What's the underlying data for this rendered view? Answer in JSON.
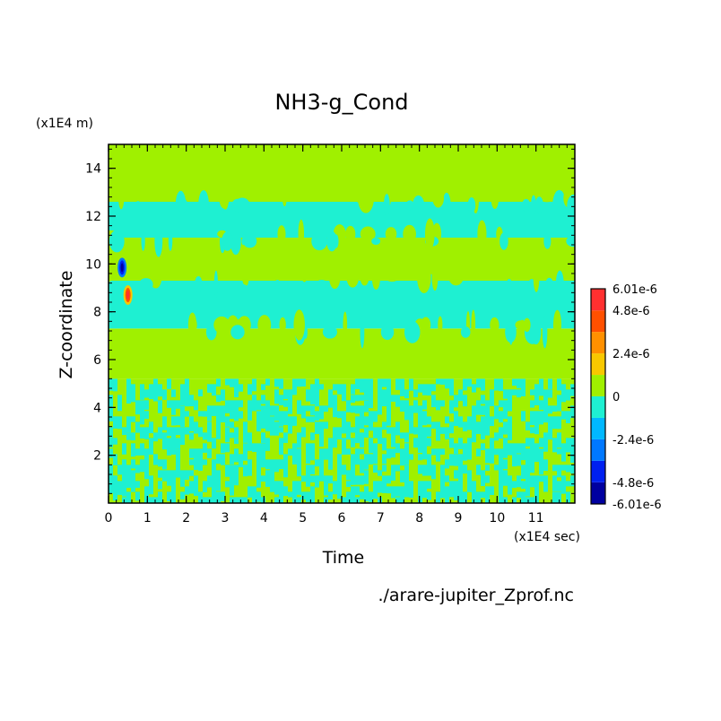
{
  "chart_data": {
    "type": "heatmap",
    "title": "NH3-g_Cond",
    "xlabel": "Time",
    "ylabel": "Z-coordinate",
    "x_unit": "(x1E4 sec)",
    "y_unit": "(x1E4 m)",
    "file_label": "./arare-jupiter_Zprof.nc",
    "xlim": [
      0,
      12
    ],
    "ylim": [
      0,
      15
    ],
    "x_ticks": [
      "0",
      "1",
      "2",
      "3",
      "4",
      "5",
      "6",
      "7",
      "8",
      "9",
      "10",
      "11"
    ],
    "y_ticks": [
      "2",
      "4",
      "6",
      "8",
      "10",
      "12",
      "14"
    ],
    "colorbar": {
      "levels": [
        -6.01e-06,
        -4.8e-06,
        -3.6e-06,
        -2.4e-06,
        -1.2e-06,
        0,
        1.2e-06,
        2.4e-06,
        3.6e-06,
        4.8e-06,
        6.01e-06
      ],
      "colors": [
        "#0000a0",
        "#0020f0",
        "#0078ff",
        "#00b8ff",
        "#1ef0d2",
        "#a0f000",
        "#f8c800",
        "#ff9000",
        "#ff5000",
        "#ff3030"
      ],
      "tick_labels": [
        "-6.01e-6",
        "-4.8e-6",
        "-2.4e-6",
        "0",
        "2.4e-6",
        "4.8e-6",
        "6.01e-6"
      ],
      "tick_values": [
        -6.01e-06,
        -4.8e-06,
        -2.4e-06,
        0,
        2.4e-06,
        4.8e-06,
        6.01e-06
      ]
    },
    "bands": [
      {
        "z": [
          0,
          5.2
        ],
        "value": "noise"
      },
      {
        "z": [
          5.2,
          7.3
        ],
        "value": 3e-07
      },
      {
        "z": [
          7.3,
          9.3
        ],
        "value": -5e-07
      },
      {
        "z": [
          9.3,
          11.1
        ],
        "value": 3e-07
      },
      {
        "z": [
          11.1,
          12.6
        ],
        "value": -5e-07
      },
      {
        "z": [
          12.6,
          15
        ],
        "value": 3e-07
      }
    ],
    "features": [
      {
        "t": 0.35,
        "z": 9.85,
        "value": -6e-06
      },
      {
        "t": 0.5,
        "z": 8.7,
        "value": 5e-06
      }
    ]
  }
}
